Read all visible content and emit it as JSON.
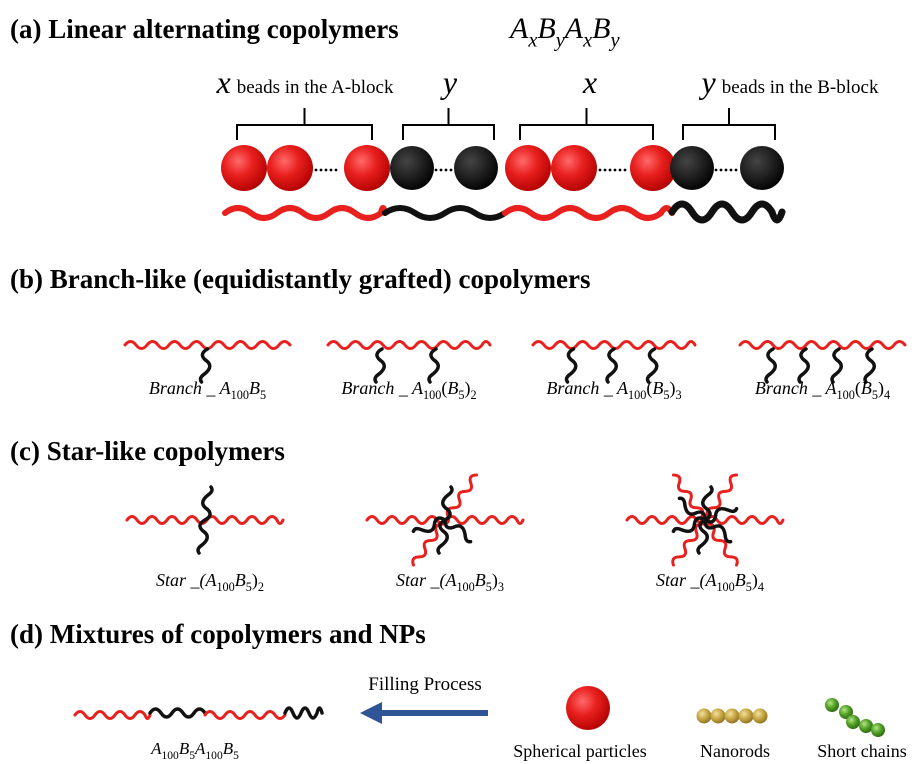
{
  "a": {
    "title": "(a) Linear alternating copolymers",
    "formula": [
      {
        "t": "A",
        "it": true
      },
      {
        "t": "x",
        "it": true,
        "sub": true
      },
      {
        "t": "B",
        "it": true
      },
      {
        "t": "y",
        "it": true,
        "sub": true
      },
      {
        "t": "A",
        "it": true
      },
      {
        "t": "x",
        "it": true,
        "sub": true
      },
      {
        "t": "B",
        "it": true
      },
      {
        "t": "y",
        "it": true,
        "sub": true
      }
    ],
    "labels": [
      [
        {
          "t": "x",
          "it": true
        },
        {
          "t": "beads in the A-block"
        }
      ],
      [
        {
          "t": "y",
          "it": true
        }
      ],
      [
        {
          "t": "x",
          "it": true
        }
      ],
      [
        {
          "t": "y",
          "it": true
        },
        {
          "t": "beads in the B-block"
        }
      ]
    ]
  },
  "b": {
    "title": "(b) Branch-like (equidistantly grafted) copolymers",
    "labels": [
      [
        {
          "t": "Branch _ ",
          "it": true
        },
        {
          "t": "A",
          "it": true
        },
        {
          "t": "100",
          "sub": true
        },
        {
          "t": "B",
          "it": true
        },
        {
          "t": "5",
          "sub": true
        }
      ],
      [
        {
          "t": "Branch _ ",
          "it": true
        },
        {
          "t": "A",
          "it": true
        },
        {
          "t": "100",
          "sub": true
        },
        {
          "t": "(",
          "it": false
        },
        {
          "t": "B",
          "it": true
        },
        {
          "t": "5",
          "sub": true
        },
        {
          "t": ")"
        },
        {
          "t": "2",
          "sub": true
        }
      ],
      [
        {
          "t": "Branch _ ",
          "it": true
        },
        {
          "t": "A",
          "it": true
        },
        {
          "t": "100",
          "sub": true
        },
        {
          "t": "(",
          "it": false
        },
        {
          "t": "B",
          "it": true
        },
        {
          "t": "5",
          "sub": true
        },
        {
          "t": ")"
        },
        {
          "t": "3",
          "sub": true
        }
      ],
      [
        {
          "t": "Branch _ ",
          "it": true
        },
        {
          "t": "A",
          "it": true
        },
        {
          "t": "100",
          "sub": true
        },
        {
          "t": "(",
          "it": false
        },
        {
          "t": "B",
          "it": true
        },
        {
          "t": "5",
          "sub": true
        },
        {
          "t": ")"
        },
        {
          "t": "4",
          "sub": true
        }
      ]
    ]
  },
  "c": {
    "title": "(c) Star-like copolymers",
    "labels": [
      [
        {
          "t": "Star _(",
          "it": true
        },
        {
          "t": "A",
          "it": true
        },
        {
          "t": "100",
          "sub": true
        },
        {
          "t": "B",
          "it": true
        },
        {
          "t": "5",
          "sub": true
        },
        {
          "t": ")"
        },
        {
          "t": "2",
          "sub": true
        }
      ],
      [
        {
          "t": "Star _(",
          "it": true
        },
        {
          "t": "A",
          "it": true
        },
        {
          "t": "100",
          "sub": true
        },
        {
          "t": "B",
          "it": true
        },
        {
          "t": "5",
          "sub": true
        },
        {
          "t": ")"
        },
        {
          "t": "3",
          "sub": true
        }
      ],
      [
        {
          "t": "Star _(",
          "it": true
        },
        {
          "t": "A",
          "it": true
        },
        {
          "t": "100",
          "sub": true
        },
        {
          "t": "B",
          "it": true
        },
        {
          "t": "5",
          "sub": true
        },
        {
          "t": ")"
        },
        {
          "t": "4",
          "sub": true
        }
      ]
    ]
  },
  "d": {
    "title": "(d) Mixtures of  copolymers and NPs",
    "process": "Filling Process",
    "chain_label": [
      {
        "t": "A",
        "it": true
      },
      {
        "t": "100",
        "sub": true
      },
      {
        "t": "B",
        "it": true
      },
      {
        "t": "5",
        "sub": true
      },
      {
        "t": "A",
        "it": true
      },
      {
        "t": "100",
        "sub": true
      },
      {
        "t": "B",
        "it": true
      },
      {
        "t": "5",
        "sub": true
      }
    ],
    "items": [
      "Spherical particles",
      "Nanorods",
      "Short chains"
    ]
  }
}
